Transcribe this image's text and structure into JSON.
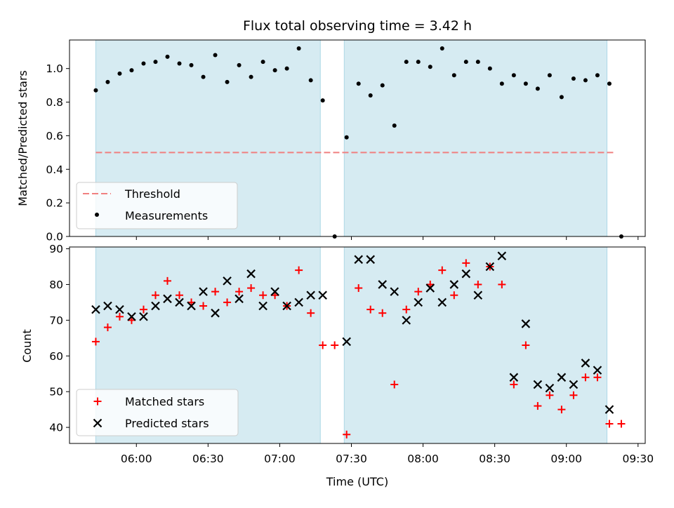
{
  "title": "Flux total observing time = 3.42 h",
  "colors": {
    "shade": "#add8e6",
    "threshold": "#f08080",
    "measurement": "#000000",
    "matched": "#ff0000",
    "predicted": "#000000"
  },
  "chart_data": [
    {
      "type": "scatter",
      "ylabel": "Matched/Predicted stars",
      "ylim": [
        0,
        1.17
      ],
      "yticks": [
        0.0,
        0.2,
        0.4,
        0.6,
        0.8,
        1.0
      ],
      "ytick_labels": [
        "0.0",
        "0.2",
        "0.4",
        "0.6",
        "0.8",
        "1.0"
      ],
      "legend": {
        "placement": "lower-left",
        "entries": [
          "Threshold",
          "Measurements"
        ]
      },
      "threshold": {
        "name": "Threshold",
        "value": 0.5,
        "x_range": [
          "05:43",
          "09:20"
        ]
      },
      "shaded_intervals": [
        [
          "05:43",
          "07:17"
        ],
        [
          "07:27",
          "09:17"
        ]
      ],
      "series": [
        {
          "name": "Measurements",
          "x": [
            "05:43",
            "05:48",
            "05:53",
            "05:58",
            "06:03",
            "06:08",
            "06:13",
            "06:18",
            "06:23",
            "06:28",
            "06:33",
            "06:38",
            "06:43",
            "06:48",
            "06:53",
            "06:58",
            "07:03",
            "07:08",
            "07:13",
            "07:18",
            "07:23",
            "07:28",
            "07:33",
            "07:38",
            "07:43",
            "07:48",
            "07:53",
            "07:58",
            "08:03",
            "08:08",
            "08:13",
            "08:18",
            "08:23",
            "08:28",
            "08:33",
            "08:38",
            "08:43",
            "08:48",
            "08:53",
            "08:58",
            "09:03",
            "09:08",
            "09:13",
            "09:18",
            "09:23"
          ],
          "y": [
            0.87,
            0.92,
            0.97,
            0.99,
            1.03,
            1.04,
            1.07,
            1.03,
            1.02,
            0.95,
            1.08,
            0.92,
            1.02,
            0.95,
            1.04,
            0.99,
            1.0,
            1.12,
            0.93,
            0.81,
            0.0,
            0.59,
            0.91,
            0.84,
            0.9,
            0.66,
            1.04,
            1.04,
            1.01,
            1.12,
            0.96,
            1.04,
            1.04,
            1.0,
            0.91,
            0.96,
            0.91,
            0.88,
            0.96,
            0.83,
            0.94,
            0.93,
            0.96,
            0.91,
            0.0
          ]
        }
      ]
    },
    {
      "type": "scatter",
      "ylabel": "Count",
      "xlabel": "Time (UTC)",
      "ylim": [
        35.5,
        90.5
      ],
      "yticks": [
        40,
        50,
        60,
        70,
        80,
        90
      ],
      "ytick_labels": [
        "40",
        "50",
        "60",
        "70",
        "80",
        "90"
      ],
      "xlim": [
        "05:32",
        "09:33"
      ],
      "xticks": [
        "06:00",
        "06:30",
        "07:00",
        "07:30",
        "08:00",
        "08:30",
        "09:00",
        "09:30"
      ],
      "legend": {
        "placement": "lower-left",
        "entries": [
          "Matched stars",
          "Predicted stars"
        ]
      },
      "shaded_intervals": [
        [
          "05:43",
          "07:17"
        ],
        [
          "07:27",
          "09:17"
        ]
      ],
      "series": [
        {
          "name": "Matched stars",
          "x": [
            "05:43",
            "05:48",
            "05:53",
            "05:58",
            "06:03",
            "06:08",
            "06:13",
            "06:18",
            "06:23",
            "06:28",
            "06:33",
            "06:38",
            "06:43",
            "06:48",
            "06:53",
            "06:58",
            "07:03",
            "07:08",
            "07:13",
            "07:18",
            "07:23",
            "07:28",
            "07:33",
            "07:38",
            "07:43",
            "07:48",
            "07:53",
            "07:58",
            "08:03",
            "08:08",
            "08:13",
            "08:18",
            "08:23",
            "08:28",
            "08:33",
            "08:38",
            "08:43",
            "08:48",
            "08:53",
            "08:58",
            "09:03",
            "09:08",
            "09:13",
            "09:18",
            "09:23"
          ],
          "y": [
            64,
            68,
            71,
            70,
            73,
            77,
            81,
            77,
            75,
            74,
            78,
            75,
            78,
            79,
            77,
            77,
            74,
            84,
            72,
            63,
            63,
            38,
            79,
            73,
            72,
            52,
            73,
            78,
            80,
            84,
            77,
            86,
            80,
            85,
            80,
            52,
            63,
            46,
            49,
            45,
            49,
            54,
            54,
            41,
            41
          ]
        },
        {
          "name": "Predicted stars",
          "x": [
            "05:43",
            "05:48",
            "05:53",
            "05:58",
            "06:03",
            "06:08",
            "06:13",
            "06:18",
            "06:23",
            "06:28",
            "06:33",
            "06:38",
            "06:43",
            "06:48",
            "06:53",
            "06:58",
            "07:03",
            "07:08",
            "07:13",
            "07:18",
            "07:28",
            "07:33",
            "07:38",
            "07:43",
            "07:48",
            "07:53",
            "07:58",
            "08:03",
            "08:08",
            "08:13",
            "08:18",
            "08:23",
            "08:28",
            "08:33",
            "08:38",
            "08:43",
            "08:48",
            "08:53",
            "08:58",
            "09:03",
            "09:08",
            "09:13",
            "09:18"
          ],
          "y": [
            73,
            74,
            73,
            71,
            71,
            74,
            76,
            75,
            74,
            78,
            72,
            81,
            76,
            83,
            74,
            78,
            74,
            75,
            77,
            77,
            64,
            87,
            87,
            80,
            78,
            70,
            75,
            79,
            75,
            80,
            83,
            77,
            85,
            88,
            54,
            69,
            52,
            51,
            54,
            52,
            58,
            56,
            45
          ]
        }
      ]
    }
  ]
}
